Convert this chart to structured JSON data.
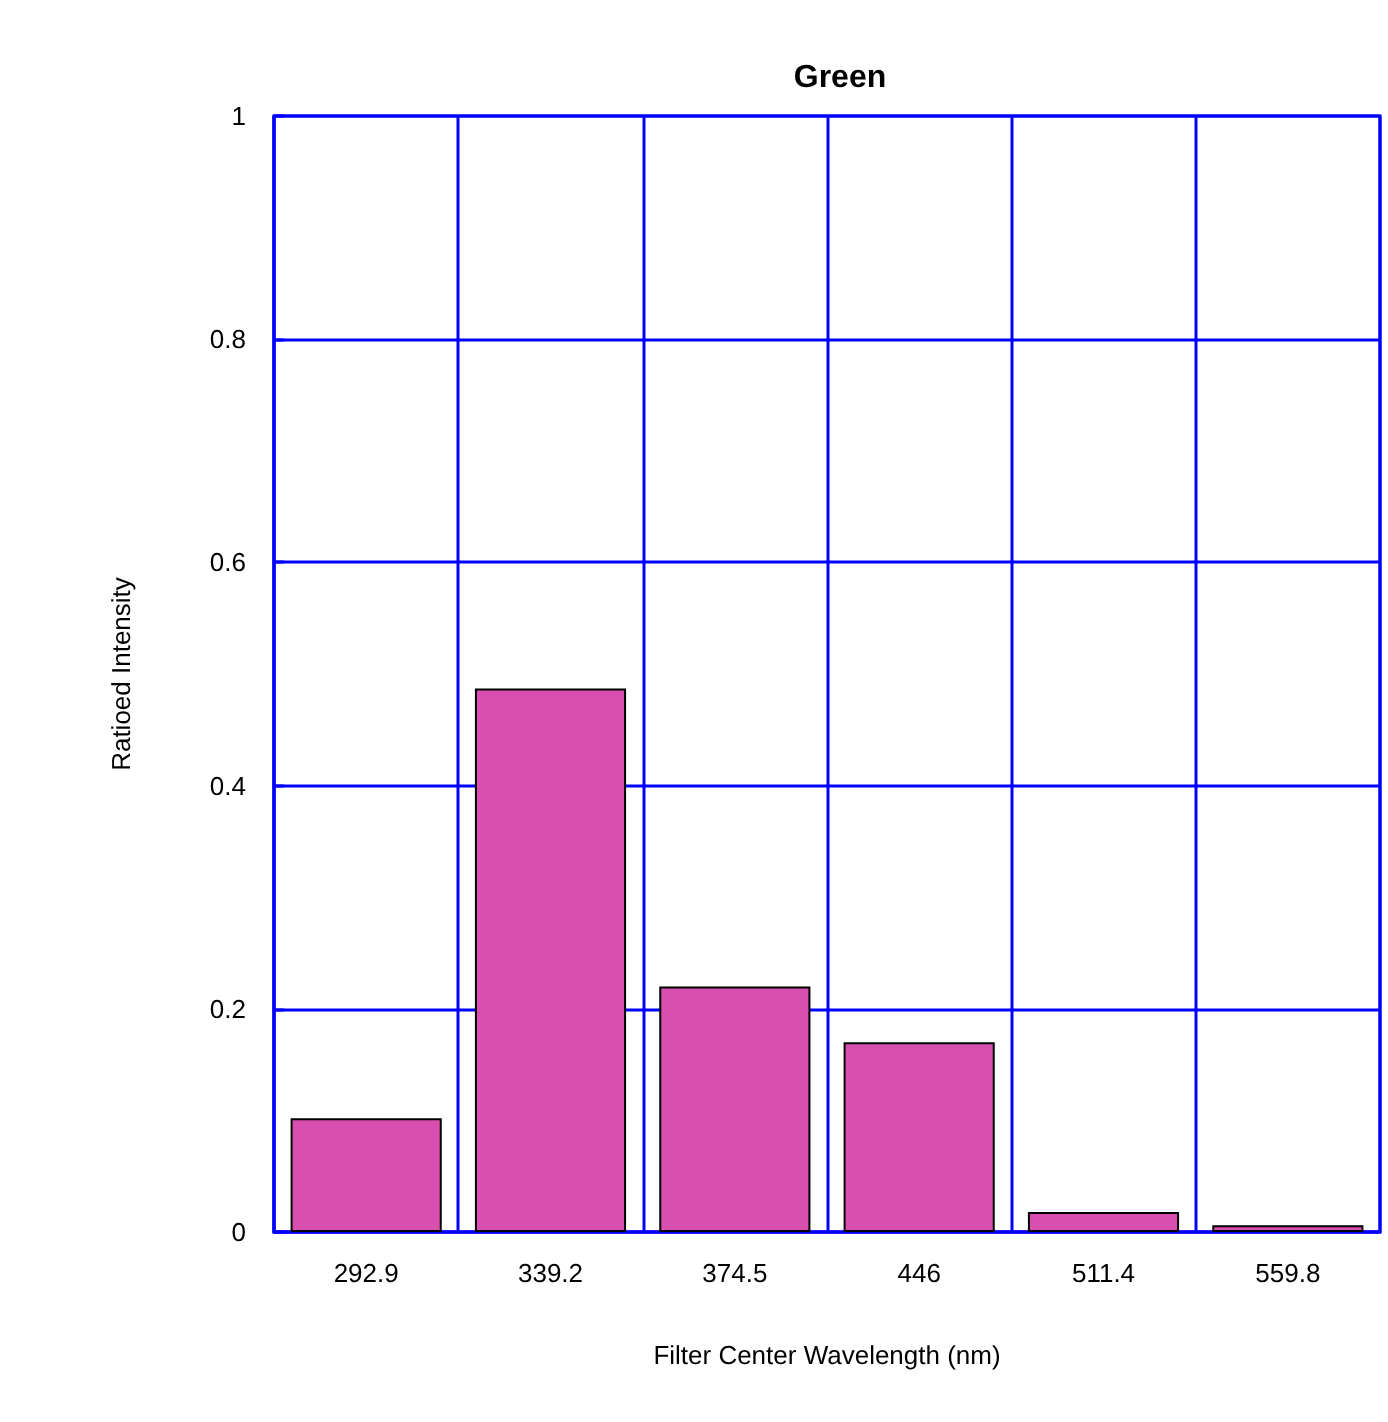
{
  "chart_data": {
    "type": "bar",
    "title": "Green",
    "xlabel": "Filter Center Wavelength (nm)",
    "ylabel": "Ratioed Intensity",
    "categories": [
      "292.9",
      "339.2",
      "374.5",
      "446",
      "511.4",
      "559.8"
    ],
    "values": [
      0.102,
      0.487,
      0.22,
      0.17,
      0.018,
      0.006
    ],
    "color": "#d94fb0",
    "ylim": [
      0,
      1
    ],
    "yticks": [
      0,
      0.2,
      0.4,
      0.6,
      0.8,
      1
    ],
    "grid": true
  }
}
